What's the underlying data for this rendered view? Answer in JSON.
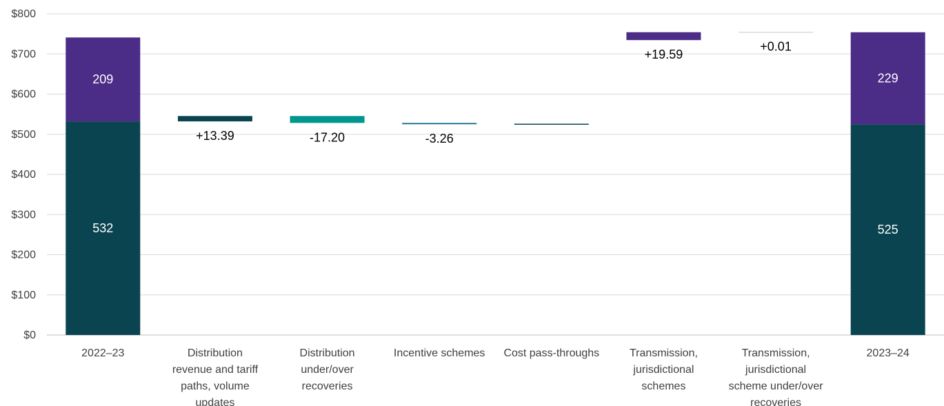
{
  "chart_data": {
    "type": "bar",
    "subtype": "waterfall",
    "title": "",
    "xlabel": "",
    "ylabel": "",
    "ylim": [
      0,
      800
    ],
    "y_ticks": [
      "$0",
      "$100",
      "$200",
      "$300",
      "$400",
      "$500",
      "$600",
      "$700",
      "$800"
    ],
    "grid": true,
    "categories": [
      [
        "2022–23"
      ],
      [
        "Distribution",
        "revenue and tariff",
        "paths, volume",
        "updates"
      ],
      [
        "Distribution",
        "under/over",
        "recoveries"
      ],
      [
        "Incentive schemes"
      ],
      [
        "Cost pass-throughs"
      ],
      [
        "Transmission,",
        "jurisdictional",
        "schemes"
      ],
      [
        "Transmission,",
        "jurisdictional",
        "scheme under/over",
        "recoveries"
      ],
      [
        "2023–24"
      ]
    ],
    "colors": {
      "distribution": "#0a4450",
      "transmission": "#4b2c86",
      "dist_decrease": "#00968f",
      "incentive": "#1b6f93",
      "gridline": "#d9d9d9",
      "axis_line": "#bfbfbf"
    },
    "totals": [
      {
        "index": 0,
        "segments": [
          {
            "name": "",
            "value": 532,
            "label": "532",
            "color_key": "distribution"
          },
          {
            "name": "",
            "value": 209,
            "label": "209",
            "color_key": "transmission"
          }
        ]
      },
      {
        "index": 7,
        "segments": [
          {
            "name": "",
            "value": 525,
            "label": "525",
            "color_key": "distribution"
          },
          {
            "name": "",
            "value": 229,
            "label": "229",
            "color_key": "transmission"
          }
        ]
      }
    ],
    "steps": [
      {
        "index": 1,
        "start": 532,
        "end": 545.39,
        "value": 13.39,
        "label": "+13.39",
        "color_key": "distribution"
      },
      {
        "index": 2,
        "start": 545.39,
        "end": 528.19,
        "value": -17.2,
        "label": "-17.20",
        "color_key": "dist_decrease"
      },
      {
        "index": 3,
        "start": 528.19,
        "end": 524.93,
        "value": -3.26,
        "label": "-3.26",
        "color_key": "incentive"
      },
      {
        "index": 4,
        "start": 524.93,
        "end": 524.93,
        "value": 0,
        "label": "",
        "color_key": "distribution"
      },
      {
        "index": 5,
        "start": 734.5,
        "end": 754.09,
        "value": 19.59,
        "label": "+19.59",
        "color_key": "transmission"
      },
      {
        "index": 6,
        "start": 754.09,
        "end": 754.1,
        "value": 0.01,
        "label": "+0.01",
        "color_key": "gridline"
      }
    ]
  }
}
